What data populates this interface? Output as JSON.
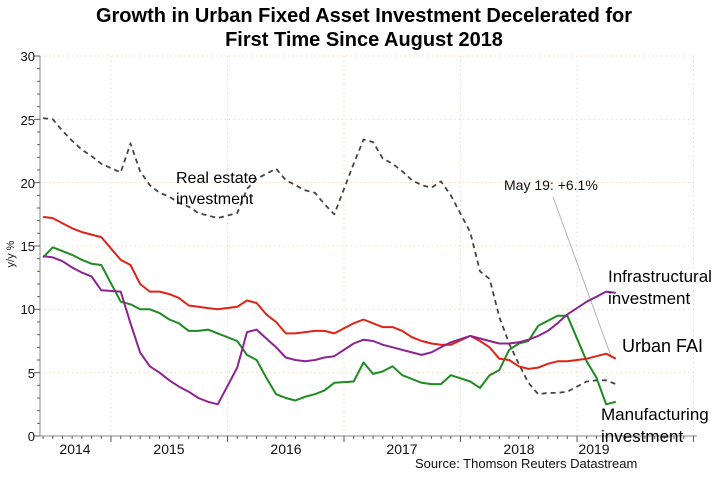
{
  "title": {
    "line1": "Growth in Urban Fixed Asset Investment Decelerated for",
    "line2": "First Time Since August 2018"
  },
  "y_axis": {
    "title": "y/y %",
    "tick_labels": [
      "0",
      "5",
      "10",
      "15",
      "20",
      "25",
      "30"
    ]
  },
  "x_axis": {
    "year_labels": [
      "2014",
      "2015",
      "2016",
      "2017",
      "2018",
      "2019"
    ]
  },
  "series_labels": {
    "real_estate": "Real estate investment",
    "infrastructural": "Infrastructural investment",
    "urban_fai": "Urban FAI",
    "manufacturing": "Manufacturing investment"
  },
  "annotation": {
    "label": "May 19: +6.1%"
  },
  "source": {
    "label": "Source: Thomson Reuters Datastream"
  },
  "colors": {
    "urban_fai": "#e02318",
    "manufacturing": "#1e8b22",
    "infrastructural": "#8c2490",
    "real_estate": "#4a4343",
    "grid": "#f5d9c0",
    "axis": "#8a8a8a",
    "tick": "#5a5a5a",
    "leader": "#b2b2b2"
  },
  "chart_data": {
    "type": "line",
    "title": "Growth in Urban Fixed Asset Investment Decelerated for First Time Since August 2018",
    "xlabel": "",
    "ylabel": "y/y %",
    "ylim": [
      0,
      30
    ],
    "y_major_step": 5,
    "x_range_decimal_years": [
      2014.39,
      2020.03
    ],
    "x_gridline_years": [
      2015,
      2016,
      2017,
      2018,
      2019,
      2020
    ],
    "grid": "dotted",
    "legend_position": "inline-labels",
    "annotation": {
      "text": "May 19: +6.1%",
      "points_to_series": "Urban FAI",
      "x": 2019.333,
      "y": 6.1
    },
    "series": [
      {
        "name": "Real estate investment",
        "style": "dashed",
        "color": "#4a4343",
        "points": [
          [
            2014.417,
            25.1
          ],
          [
            2014.5,
            25.0
          ],
          [
            2014.583,
            24.1
          ],
          [
            2014.667,
            23.3
          ],
          [
            2014.75,
            22.6
          ],
          [
            2014.833,
            22.1
          ],
          [
            2014.917,
            21.5
          ],
          [
            2015.083,
            20.8
          ],
          [
            2015.167,
            23.1
          ],
          [
            2015.25,
            20.9
          ],
          [
            2015.333,
            19.8
          ],
          [
            2015.417,
            19.2
          ],
          [
            2015.5,
            18.9
          ],
          [
            2015.583,
            18.4
          ],
          [
            2015.667,
            18.1
          ],
          [
            2015.75,
            17.6
          ],
          [
            2015.833,
            17.4
          ],
          [
            2015.917,
            17.2
          ],
          [
            2016.083,
            17.6
          ],
          [
            2016.167,
            19.5
          ],
          [
            2016.25,
            20.3
          ],
          [
            2016.333,
            20.7
          ],
          [
            2016.417,
            21.1
          ],
          [
            2016.5,
            20.2
          ],
          [
            2016.583,
            19.8
          ],
          [
            2016.667,
            19.4
          ],
          [
            2016.75,
            19.2
          ],
          [
            2016.833,
            18.3
          ],
          [
            2016.917,
            17.5
          ],
          [
            2017.083,
            21.5
          ],
          [
            2017.167,
            23.4
          ],
          [
            2017.25,
            23.2
          ],
          [
            2017.333,
            21.9
          ],
          [
            2017.417,
            21.5
          ],
          [
            2017.5,
            20.9
          ],
          [
            2017.583,
            20.2
          ],
          [
            2017.667,
            19.8
          ],
          [
            2017.75,
            19.6
          ],
          [
            2017.833,
            20.1
          ],
          [
            2017.917,
            19.0
          ],
          [
            2018.083,
            16.1
          ],
          [
            2018.167,
            13.0
          ],
          [
            2018.25,
            12.4
          ],
          [
            2018.333,
            9.4
          ],
          [
            2018.417,
            7.3
          ],
          [
            2018.5,
            5.7
          ],
          [
            2018.583,
            4.2
          ],
          [
            2018.667,
            3.3
          ],
          [
            2018.75,
            3.4
          ],
          [
            2018.833,
            3.4
          ],
          [
            2018.917,
            3.5
          ],
          [
            2019.083,
            4.3
          ],
          [
            2019.167,
            4.4
          ],
          [
            2019.25,
            4.4
          ],
          [
            2019.333,
            4.1
          ]
        ]
      },
      {
        "name": "Manufacturing investment",
        "style": "solid",
        "color": "#1e8b22",
        "points": [
          [
            2014.417,
            14.1
          ],
          [
            2014.5,
            14.9
          ],
          [
            2014.583,
            14.6
          ],
          [
            2014.667,
            14.3
          ],
          [
            2014.75,
            13.9
          ],
          [
            2014.833,
            13.6
          ],
          [
            2014.917,
            13.5
          ],
          [
            2015.083,
            10.6
          ],
          [
            2015.167,
            10.4
          ],
          [
            2015.25,
            10.0
          ],
          [
            2015.333,
            10.0
          ],
          [
            2015.417,
            9.7
          ],
          [
            2015.5,
            9.2
          ],
          [
            2015.583,
            8.9
          ],
          [
            2015.667,
            8.3
          ],
          [
            2015.75,
            8.3
          ],
          [
            2015.833,
            8.4
          ],
          [
            2015.917,
            8.1
          ],
          [
            2016.083,
            7.5
          ],
          [
            2016.167,
            6.4
          ],
          [
            2016.25,
            6.0
          ],
          [
            2016.333,
            4.6
          ],
          [
            2016.417,
            3.3
          ],
          [
            2016.5,
            3.0
          ],
          [
            2016.583,
            2.8
          ],
          [
            2016.667,
            3.1
          ],
          [
            2016.75,
            3.3
          ],
          [
            2016.833,
            3.6
          ],
          [
            2016.917,
            4.2
          ],
          [
            2017.083,
            4.3
          ],
          [
            2017.167,
            5.8
          ],
          [
            2017.25,
            4.9
          ],
          [
            2017.333,
            5.1
          ],
          [
            2017.417,
            5.5
          ],
          [
            2017.5,
            4.8
          ],
          [
            2017.583,
            4.5
          ],
          [
            2017.667,
            4.2
          ],
          [
            2017.75,
            4.1
          ],
          [
            2017.833,
            4.1
          ],
          [
            2017.917,
            4.8
          ],
          [
            2018.083,
            4.3
          ],
          [
            2018.167,
            3.8
          ],
          [
            2018.25,
            4.8
          ],
          [
            2018.333,
            5.2
          ],
          [
            2018.417,
            6.8
          ],
          [
            2018.5,
            7.3
          ],
          [
            2018.583,
            7.5
          ],
          [
            2018.667,
            8.7
          ],
          [
            2018.75,
            9.1
          ],
          [
            2018.833,
            9.5
          ],
          [
            2018.917,
            9.5
          ],
          [
            2019.083,
            5.9
          ],
          [
            2019.167,
            4.6
          ],
          [
            2019.25,
            2.5
          ],
          [
            2019.333,
            2.7
          ]
        ]
      },
      {
        "name": "Urban FAI",
        "style": "solid",
        "color": "#e02318",
        "points": [
          [
            2014.417,
            17.3
          ],
          [
            2014.5,
            17.2
          ],
          [
            2014.583,
            16.8
          ],
          [
            2014.667,
            16.4
          ],
          [
            2014.75,
            16.1
          ],
          [
            2014.833,
            15.9
          ],
          [
            2014.917,
            15.7
          ],
          [
            2015.083,
            13.9
          ],
          [
            2015.167,
            13.5
          ],
          [
            2015.25,
            12.0
          ],
          [
            2015.333,
            11.4
          ],
          [
            2015.417,
            11.4
          ],
          [
            2015.5,
            11.2
          ],
          [
            2015.583,
            10.9
          ],
          [
            2015.667,
            10.3
          ],
          [
            2015.75,
            10.2
          ],
          [
            2015.833,
            10.1
          ],
          [
            2015.917,
            10.0
          ],
          [
            2016.083,
            10.2
          ],
          [
            2016.167,
            10.7
          ],
          [
            2016.25,
            10.5
          ],
          [
            2016.333,
            9.6
          ],
          [
            2016.417,
            9.0
          ],
          [
            2016.5,
            8.1
          ],
          [
            2016.583,
            8.1
          ],
          [
            2016.667,
            8.2
          ],
          [
            2016.75,
            8.3
          ],
          [
            2016.833,
            8.3
          ],
          [
            2016.917,
            8.1
          ],
          [
            2017.083,
            8.9
          ],
          [
            2017.167,
            9.2
          ],
          [
            2017.25,
            8.9
          ],
          [
            2017.333,
            8.6
          ],
          [
            2017.417,
            8.6
          ],
          [
            2017.5,
            8.3
          ],
          [
            2017.583,
            7.8
          ],
          [
            2017.667,
            7.5
          ],
          [
            2017.75,
            7.3
          ],
          [
            2017.833,
            7.2
          ],
          [
            2017.917,
            7.2
          ],
          [
            2018.083,
            7.9
          ],
          [
            2018.167,
            7.5
          ],
          [
            2018.25,
            7.0
          ],
          [
            2018.333,
            6.1
          ],
          [
            2018.417,
            6.0
          ],
          [
            2018.5,
            5.5
          ],
          [
            2018.583,
            5.3
          ],
          [
            2018.667,
            5.4
          ],
          [
            2018.75,
            5.7
          ],
          [
            2018.833,
            5.9
          ],
          [
            2018.917,
            5.9
          ],
          [
            2019.083,
            6.1
          ],
          [
            2019.167,
            6.3
          ],
          [
            2019.25,
            6.5
          ],
          [
            2019.333,
            6.1
          ]
        ]
      },
      {
        "name": "Infrastructural investment",
        "style": "solid",
        "color": "#8c2490",
        "points": [
          [
            2014.417,
            14.2
          ],
          [
            2014.5,
            14.1
          ],
          [
            2014.583,
            13.8
          ],
          [
            2014.667,
            13.3
          ],
          [
            2014.75,
            12.9
          ],
          [
            2014.833,
            12.6
          ],
          [
            2014.917,
            11.5
          ],
          [
            2015.083,
            11.4
          ],
          [
            2015.167,
            8.9
          ],
          [
            2015.25,
            6.6
          ],
          [
            2015.333,
            5.5
          ],
          [
            2015.417,
            5.0
          ],
          [
            2015.5,
            4.4
          ],
          [
            2015.583,
            3.9
          ],
          [
            2015.667,
            3.5
          ],
          [
            2015.75,
            3.0
          ],
          [
            2015.833,
            2.7
          ],
          [
            2015.917,
            2.5
          ],
          [
            2016.083,
            5.4
          ],
          [
            2016.167,
            8.2
          ],
          [
            2016.25,
            8.4
          ],
          [
            2016.333,
            7.7
          ],
          [
            2016.417,
            7.0
          ],
          [
            2016.5,
            6.2
          ],
          [
            2016.583,
            6.0
          ],
          [
            2016.667,
            5.9
          ],
          [
            2016.75,
            6.0
          ],
          [
            2016.833,
            6.2
          ],
          [
            2016.917,
            6.3
          ],
          [
            2017.083,
            7.3
          ],
          [
            2017.167,
            7.6
          ],
          [
            2017.25,
            7.5
          ],
          [
            2017.333,
            7.2
          ],
          [
            2017.417,
            7.0
          ],
          [
            2017.5,
            6.8
          ],
          [
            2017.583,
            6.6
          ],
          [
            2017.667,
            6.4
          ],
          [
            2017.75,
            6.6
          ],
          [
            2017.833,
            7.0
          ],
          [
            2017.917,
            7.4
          ],
          [
            2018.083,
            7.9
          ],
          [
            2018.167,
            7.7
          ],
          [
            2018.25,
            7.5
          ],
          [
            2018.333,
            7.3
          ],
          [
            2018.417,
            7.3
          ],
          [
            2018.5,
            7.4
          ],
          [
            2018.583,
            7.6
          ],
          [
            2018.667,
            7.9
          ],
          [
            2018.75,
            8.3
          ],
          [
            2018.833,
            8.9
          ],
          [
            2018.917,
            9.6
          ],
          [
            2019.083,
            10.6
          ],
          [
            2019.167,
            11.0
          ],
          [
            2019.25,
            11.4
          ],
          [
            2019.333,
            11.3
          ]
        ]
      }
    ]
  }
}
